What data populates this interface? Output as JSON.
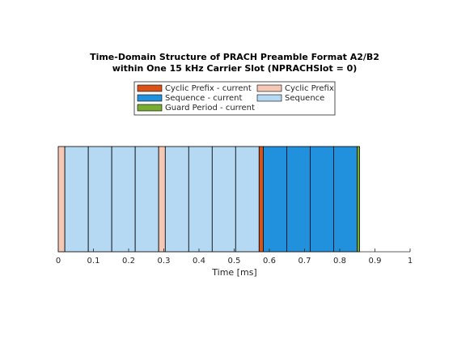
{
  "chart_data": {
    "type": "timeline",
    "title": [
      "Time-Domain Structure of PRACH Preamble Format A2/B2",
      "within One 15 kHz Carrier Slot (NPRACHSlot = 0)"
    ],
    "xlabel": "Time  [ms]",
    "xlim": [
      0,
      1
    ],
    "xticks": [
      0,
      0.1,
      0.2,
      0.3,
      0.4,
      0.5,
      0.6,
      0.7,
      0.8,
      0.9,
      1
    ],
    "series": [
      {
        "name": "Cyclic Prefix - current",
        "color": "#d95319"
      },
      {
        "name": "Sequence - current",
        "color": "#2291dd"
      },
      {
        "name": "Guard Period - current",
        "color": "#77ac30"
      },
      {
        "name": "Cyclic Prefix",
        "color": "#f5c8b5"
      },
      {
        "name": "Sequence",
        "color": "#b5d9f2"
      }
    ],
    "segments": [
      {
        "series": 3,
        "duration": 0.01875
      },
      {
        "series": 4,
        "duration": 0.066667
      },
      {
        "series": 4,
        "duration": 0.066667
      },
      {
        "series": 4,
        "duration": 0.066667
      },
      {
        "series": 4,
        "duration": 0.066667
      },
      {
        "series": 3,
        "duration": 0.01875
      },
      {
        "series": 4,
        "duration": 0.066667
      },
      {
        "series": 4,
        "duration": 0.066667
      },
      {
        "series": 4,
        "duration": 0.066667
      },
      {
        "series": 4,
        "duration": 0.066667
      },
      {
        "series": 0,
        "duration": 0.01172
      },
      {
        "series": 1,
        "duration": 0.066667
      },
      {
        "series": 1,
        "duration": 0.066667
      },
      {
        "series": 1,
        "duration": 0.066667
      },
      {
        "series": 1,
        "duration": 0.066667
      },
      {
        "series": 2,
        "duration": 0.00703
      }
    ]
  }
}
